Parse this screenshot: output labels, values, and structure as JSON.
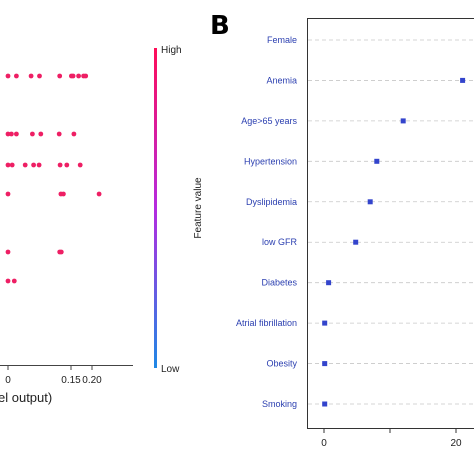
{
  "panel_letter": "B",
  "chart_data": [
    {
      "type": "scatter",
      "xlabel": "el output)",
      "x_ticks": [
        {
          "label": "0",
          "value": 0.0
        },
        {
          "label": "0.15",
          "value": 0.15
        },
        {
          "label": "0.20",
          "value": 0.2
        }
      ],
      "colorbar": {
        "title": "Feature value",
        "high_label": "High",
        "low_label": "Low",
        "high_color": "#ff0d57",
        "low_color": "#1e88e5"
      },
      "rows": [
        {
          "values": [
            0.0,
            0.02,
            0.055,
            0.075,
            0.123,
            0.151,
            0.155,
            0.168,
            0.18,
            0.185
          ],
          "color": "#ee1f64"
        },
        {
          "values": [
            0.0,
            0.008,
            0.02,
            0.058,
            0.078,
            0.122,
            0.157
          ],
          "color": "#ee1f64"
        },
        {
          "values": [
            0.0,
            0.01,
            0.041,
            0.061,
            0.074,
            0.124,
            0.14,
            0.172
          ],
          "color": "#ee1f64"
        },
        {
          "values": [
            0.0,
            0.126,
            0.132,
            0.217
          ],
          "color": "#ee1f64"
        },
        {
          "values": [
            0.0,
            0.123,
            0.127
          ],
          "color": "#ee1f64"
        },
        {
          "values": [
            0.0,
            0.015
          ],
          "color": "#ee1f64"
        }
      ]
    },
    {
      "type": "scatter",
      "categories": [
        "Female",
        "Anemia",
        "Age>65 years",
        "Hypertension",
        "Dyslipidemia",
        "low GFR",
        "Diabetes",
        "Atrial fibrillation",
        "Obesity",
        "Smoking"
      ],
      "values": [
        null,
        21,
        12,
        8,
        7,
        4.8,
        0.7,
        0.1,
        0.1,
        0.1
      ],
      "x_ticks": [
        0,
        10,
        20
      ],
      "x_tick_labels": [
        "0",
        "",
        "20"
      ],
      "marker_color": "#3344cc",
      "label_color": "#2b3fb0"
    }
  ]
}
